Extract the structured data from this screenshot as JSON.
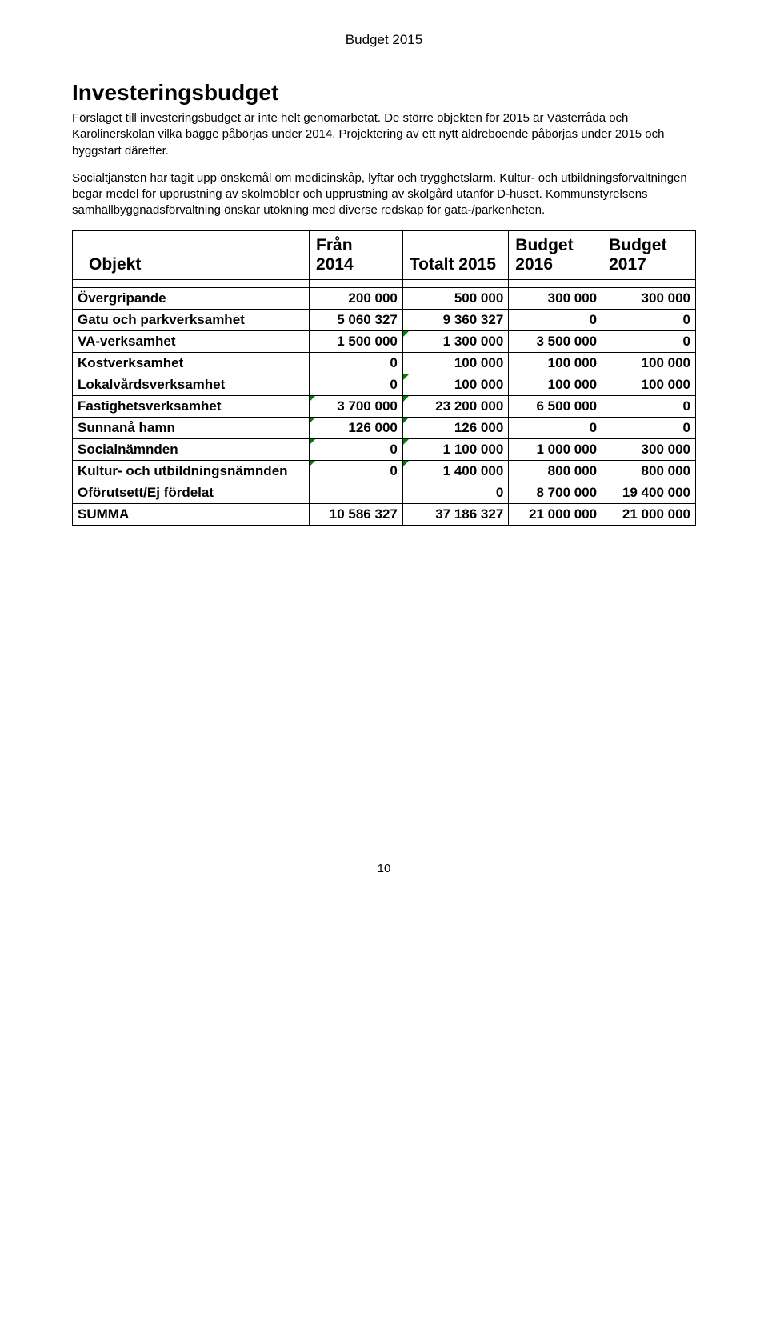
{
  "header": {
    "title": "Budget 2015"
  },
  "section": {
    "heading": "Investeringsbudget",
    "para1": "Förslaget till investeringsbudget är inte helt genomarbetat. De större objekten för 2015 är Västerråda och Karolinerskolan vilka bägge påbörjas under 2014. Projektering av ett nytt äldreboende påbörjas under 2015 och byggstart därefter.",
    "para2": "Socialtjänsten har tagit upp önskemål om medicinskåp, lyftar och trygghetslarm. Kultur- och utbildningsförvaltningen begär medel för upprustning av skolmöbler och upprustning av skolgård utanför D-huset. Kommunstyrelsens samhällbyggnadsförvaltning önskar utökning med diverse redskap för gata-/parkenheten."
  },
  "table": {
    "headers": {
      "objekt": "Objekt",
      "c1_l1": "Från",
      "c1_l2": "2014",
      "c2_l1": "",
      "c2_l2": "Totalt 2015",
      "c3_l1": "Budget",
      "c3_l2": "2016",
      "c4_l1": "Budget",
      "c4_l2": "2017"
    },
    "rows": [
      {
        "label": "Övergripande",
        "c1": "200 000",
        "c2": "500 000",
        "c3": "300 000",
        "c4": "300 000",
        "ticks": [
          false,
          false,
          false,
          false
        ]
      },
      {
        "label": "Gatu och parkverksamhet",
        "c1": "5 060 327",
        "c2": "9 360 327",
        "c3": "0",
        "c4": "0",
        "ticks": [
          false,
          false,
          false,
          false
        ]
      },
      {
        "label": "VA-verksamhet",
        "c1": "1 500 000",
        "c2": "1 300 000",
        "c3": "3 500 000",
        "c4": "0",
        "ticks": [
          false,
          true,
          false,
          false
        ]
      },
      {
        "label": "Kostverksamhet",
        "c1": "0",
        "c2": "100 000",
        "c3": "100 000",
        "c4": "100 000",
        "ticks": [
          false,
          false,
          false,
          false
        ]
      },
      {
        "label": "Lokalvårdsverksamhet",
        "c1": "0",
        "c2": "100 000",
        "c3": "100 000",
        "c4": "100 000",
        "ticks": [
          false,
          true,
          false,
          false
        ]
      },
      {
        "label": "Fastighetsverksamhet",
        "c1": "3 700 000",
        "c2": "23 200 000",
        "c3": "6 500 000",
        "c4": "0",
        "ticks": [
          true,
          true,
          false,
          false
        ]
      },
      {
        "label": "Sunnanå hamn",
        "c1": "126 000",
        "c2": "126 000",
        "c3": "0",
        "c4": "0",
        "ticks": [
          true,
          true,
          false,
          false
        ]
      },
      {
        "label": "Socialnämnden",
        "c1": "0",
        "c2": "1 100 000",
        "c3": "1 000 000",
        "c4": "300 000",
        "ticks": [
          true,
          true,
          false,
          false
        ]
      },
      {
        "label": "Kultur- och utbildningsnämnden",
        "c1": "0",
        "c2": "1 400 000",
        "c3": "800 000",
        "c4": "800 000",
        "ticks": [
          true,
          true,
          false,
          false
        ]
      },
      {
        "label": "Oförutsett/Ej fördelat",
        "c1": "",
        "c2": "0",
        "c3": "8 700 000",
        "c4": "19 400 000",
        "ticks": [
          false,
          false,
          false,
          false
        ]
      },
      {
        "label": "SUMMA",
        "c1": "10 586 327",
        "c2": "37 186 327",
        "c3": "21 000 000",
        "c4": "21 000 000",
        "ticks": [
          false,
          false,
          false,
          false
        ]
      }
    ]
  },
  "footer": {
    "pageNumber": "10"
  }
}
